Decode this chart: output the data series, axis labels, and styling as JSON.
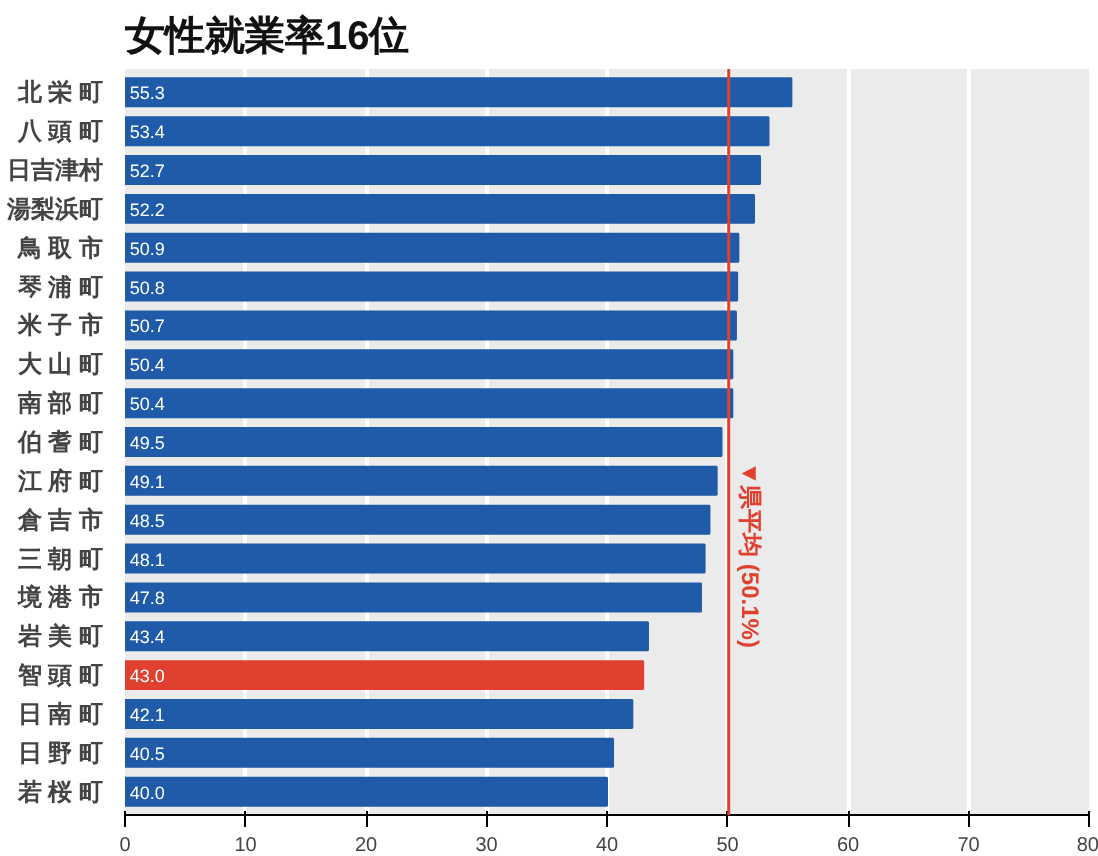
{
  "chart_data": {
    "type": "bar",
    "orientation": "horizontal",
    "title": "女性就業率16位",
    "categories": [
      "北 栄 町",
      "八 頭 町",
      "日吉津村",
      "湯梨浜町",
      "鳥 取 市",
      "琴 浦 町",
      "米 子 市",
      "大 山 町",
      "南 部 町",
      "伯 耆 町",
      "江 府 町",
      "倉 吉 市",
      "三 朝 町",
      "境 港 市",
      "岩 美 町",
      "智 頭 町",
      "日 南 町",
      "日 野 町",
      "若 桜 町"
    ],
    "values": [
      55.3,
      53.4,
      52.7,
      52.2,
      50.9,
      50.8,
      50.7,
      50.4,
      50.4,
      49.5,
      49.1,
      48.5,
      48.1,
      47.8,
      43.4,
      43.0,
      42.1,
      40.5,
      40.0
    ],
    "value_labels": [
      "55.3",
      "53.4",
      "52.7",
      "52.2",
      "50.9",
      "50.8",
      "50.7",
      "50.4",
      "50.4",
      "49.5",
      "49.1",
      "48.5",
      "48.1",
      "47.8",
      "43.4",
      "43.0",
      "42.1",
      "40.5",
      "40.0"
    ],
    "colors": [
      "#1f5ba8",
      "#1f5ba8",
      "#1f5ba8",
      "#1f5ba8",
      "#1f5ba8",
      "#1f5ba8",
      "#1f5ba8",
      "#1f5ba8",
      "#1f5ba8",
      "#1f5ba8",
      "#1f5ba8",
      "#1f5ba8",
      "#1f5ba8",
      "#1f5ba8",
      "#1f5ba8",
      "#e0402e",
      "#1f5ba8",
      "#1f5ba8",
      "#1f5ba8"
    ],
    "xlim": [
      0,
      80
    ],
    "xticks": [
      0,
      10,
      20,
      30,
      40,
      50,
      60,
      70,
      80
    ],
    "grid": "x",
    "ref_lines": [
      {
        "axis": "x",
        "value": 50.1,
        "label": "▼県平均 (50.1%)",
        "color": "#e0402e"
      }
    ]
  }
}
